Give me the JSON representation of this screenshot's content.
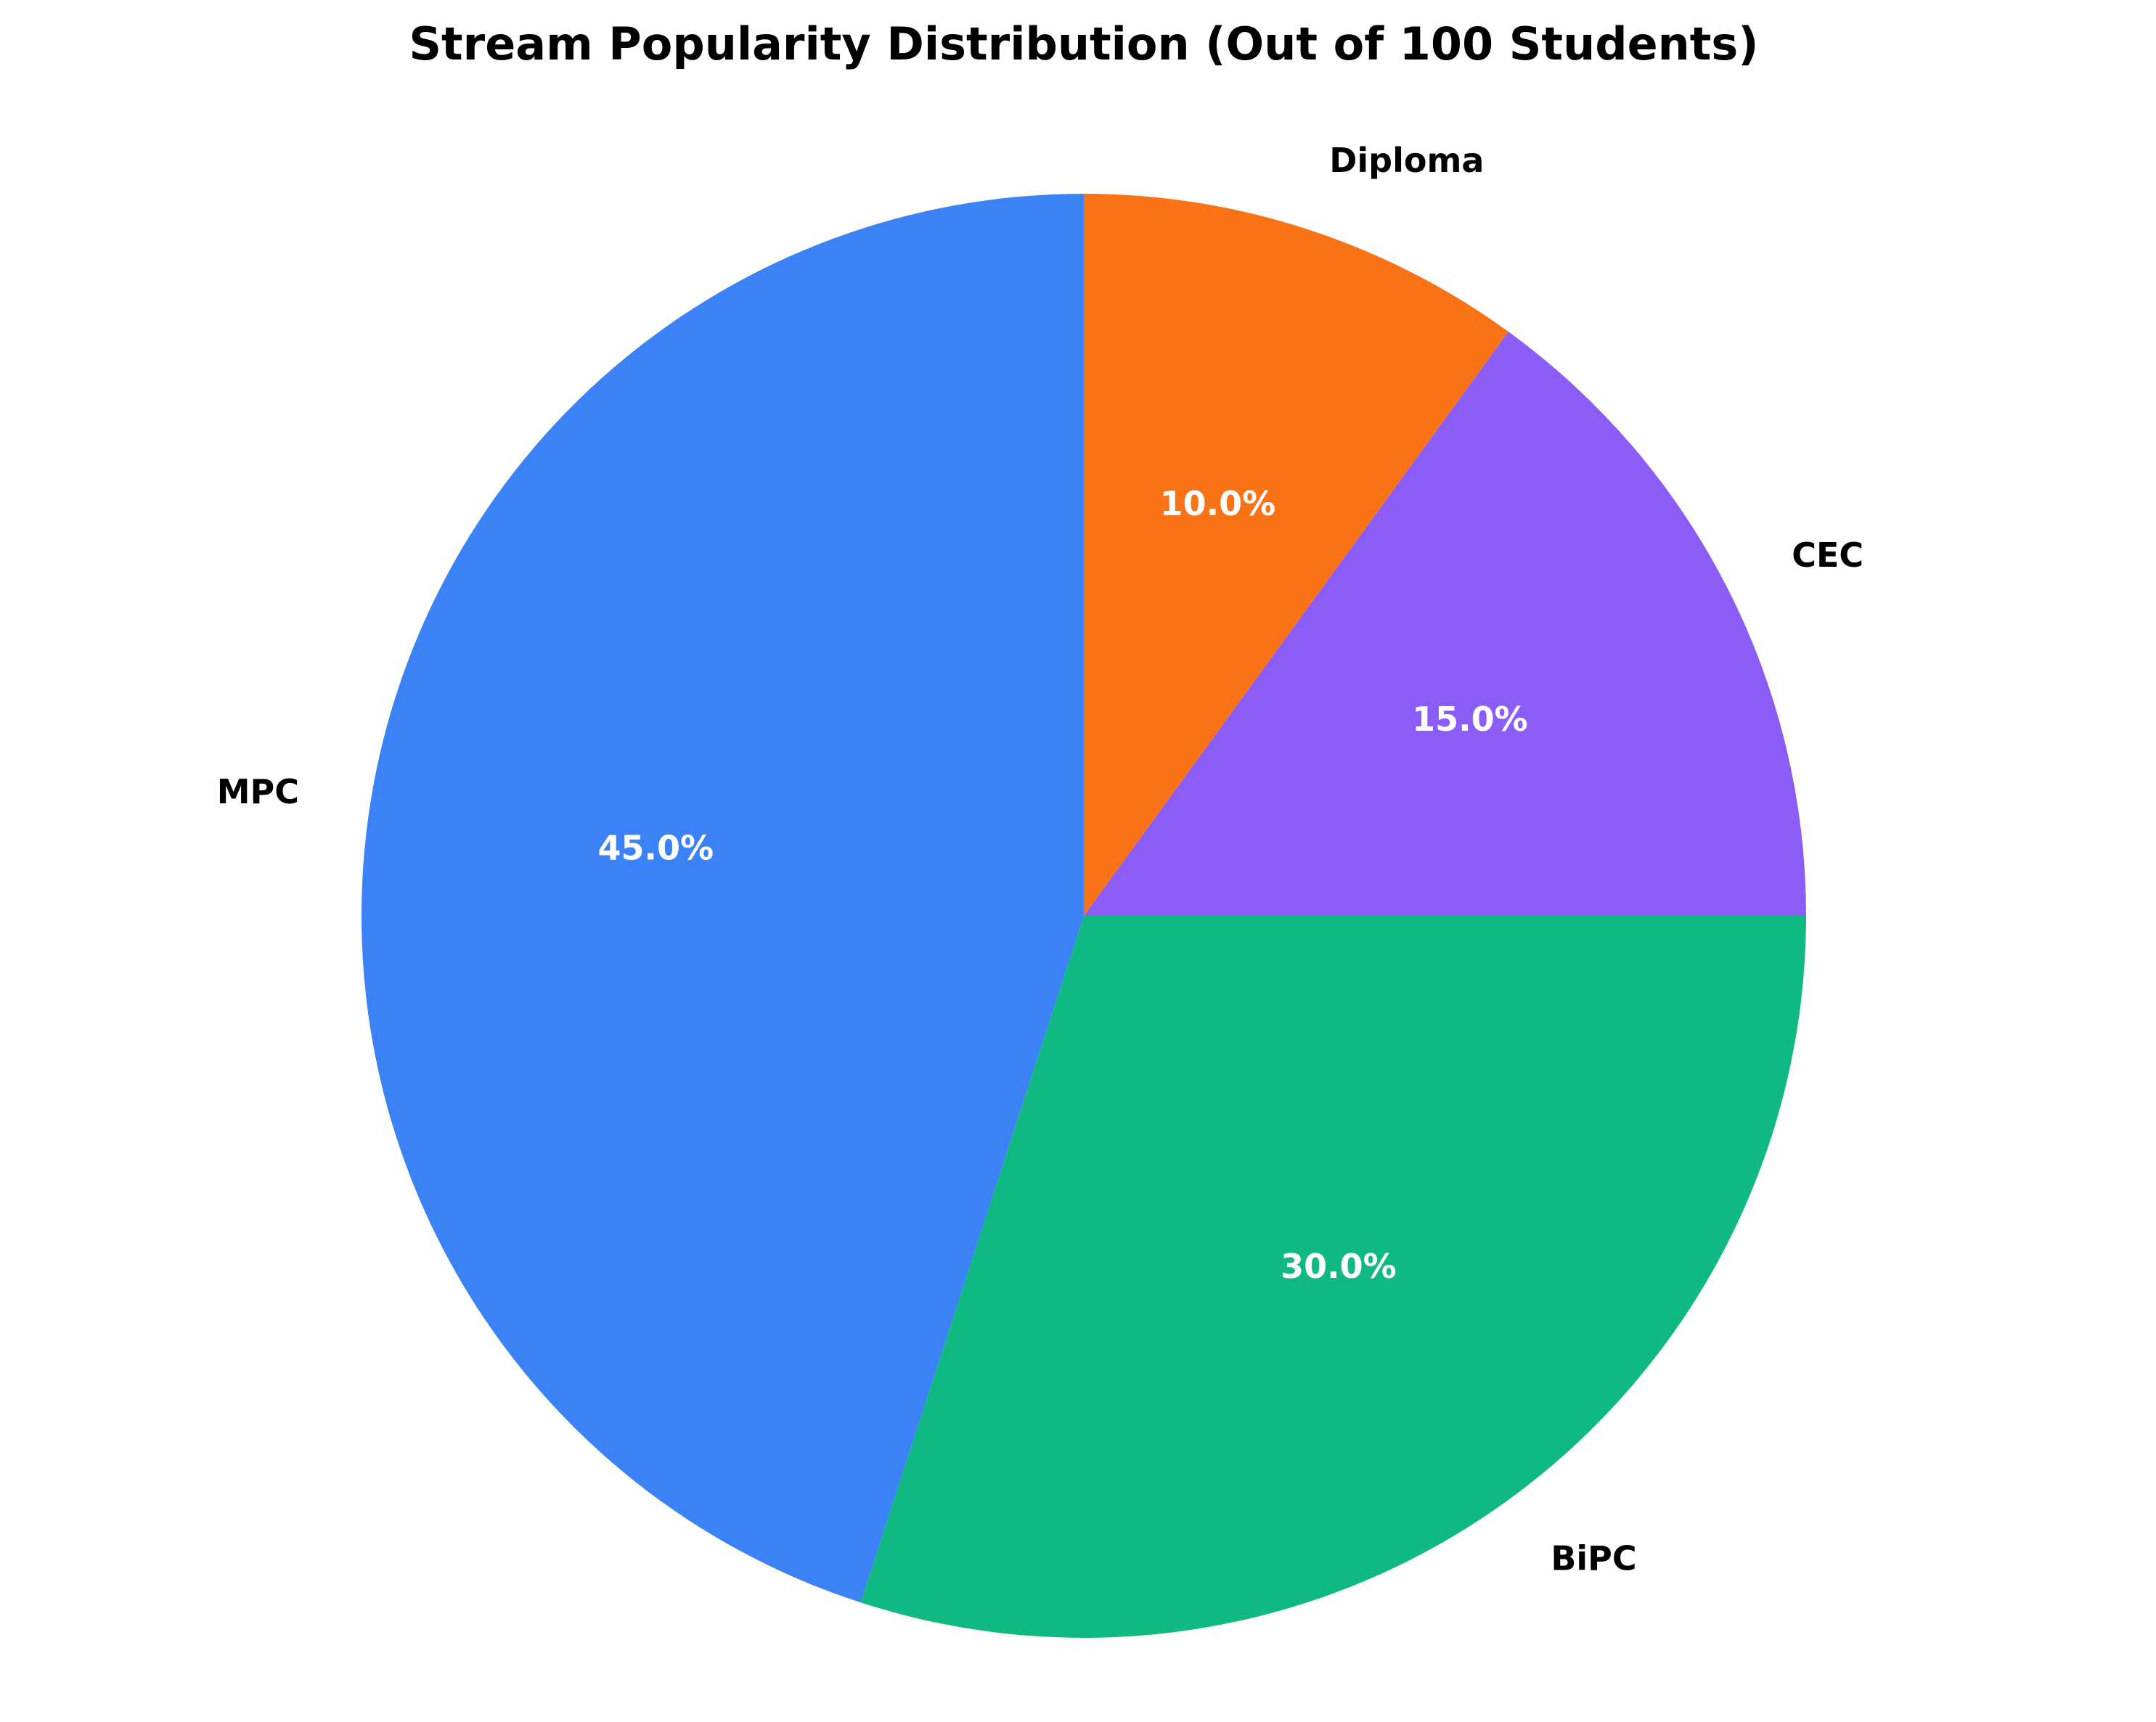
{
  "chart_data": {
    "type": "pie",
    "title": "Stream Popularity Distribution (Out of 100 Students)",
    "slices": [
      {
        "label": "MPC",
        "value": 45,
        "pct_label": "45.0%",
        "color": "#3b82f6"
      },
      {
        "label": "BiPC",
        "value": 30,
        "pct_label": "30.0%",
        "color": "#10b981"
      },
      {
        "label": "CEC",
        "value": 15,
        "pct_label": "15.0%",
        "color": "#8b5cf6"
      },
      {
        "label": "Diploma",
        "value": 10,
        "pct_label": "10.0%",
        "color": "#f97316"
      }
    ],
    "start_angle_deg": 90,
    "direction": "counterclockwise",
    "legend": "none"
  }
}
